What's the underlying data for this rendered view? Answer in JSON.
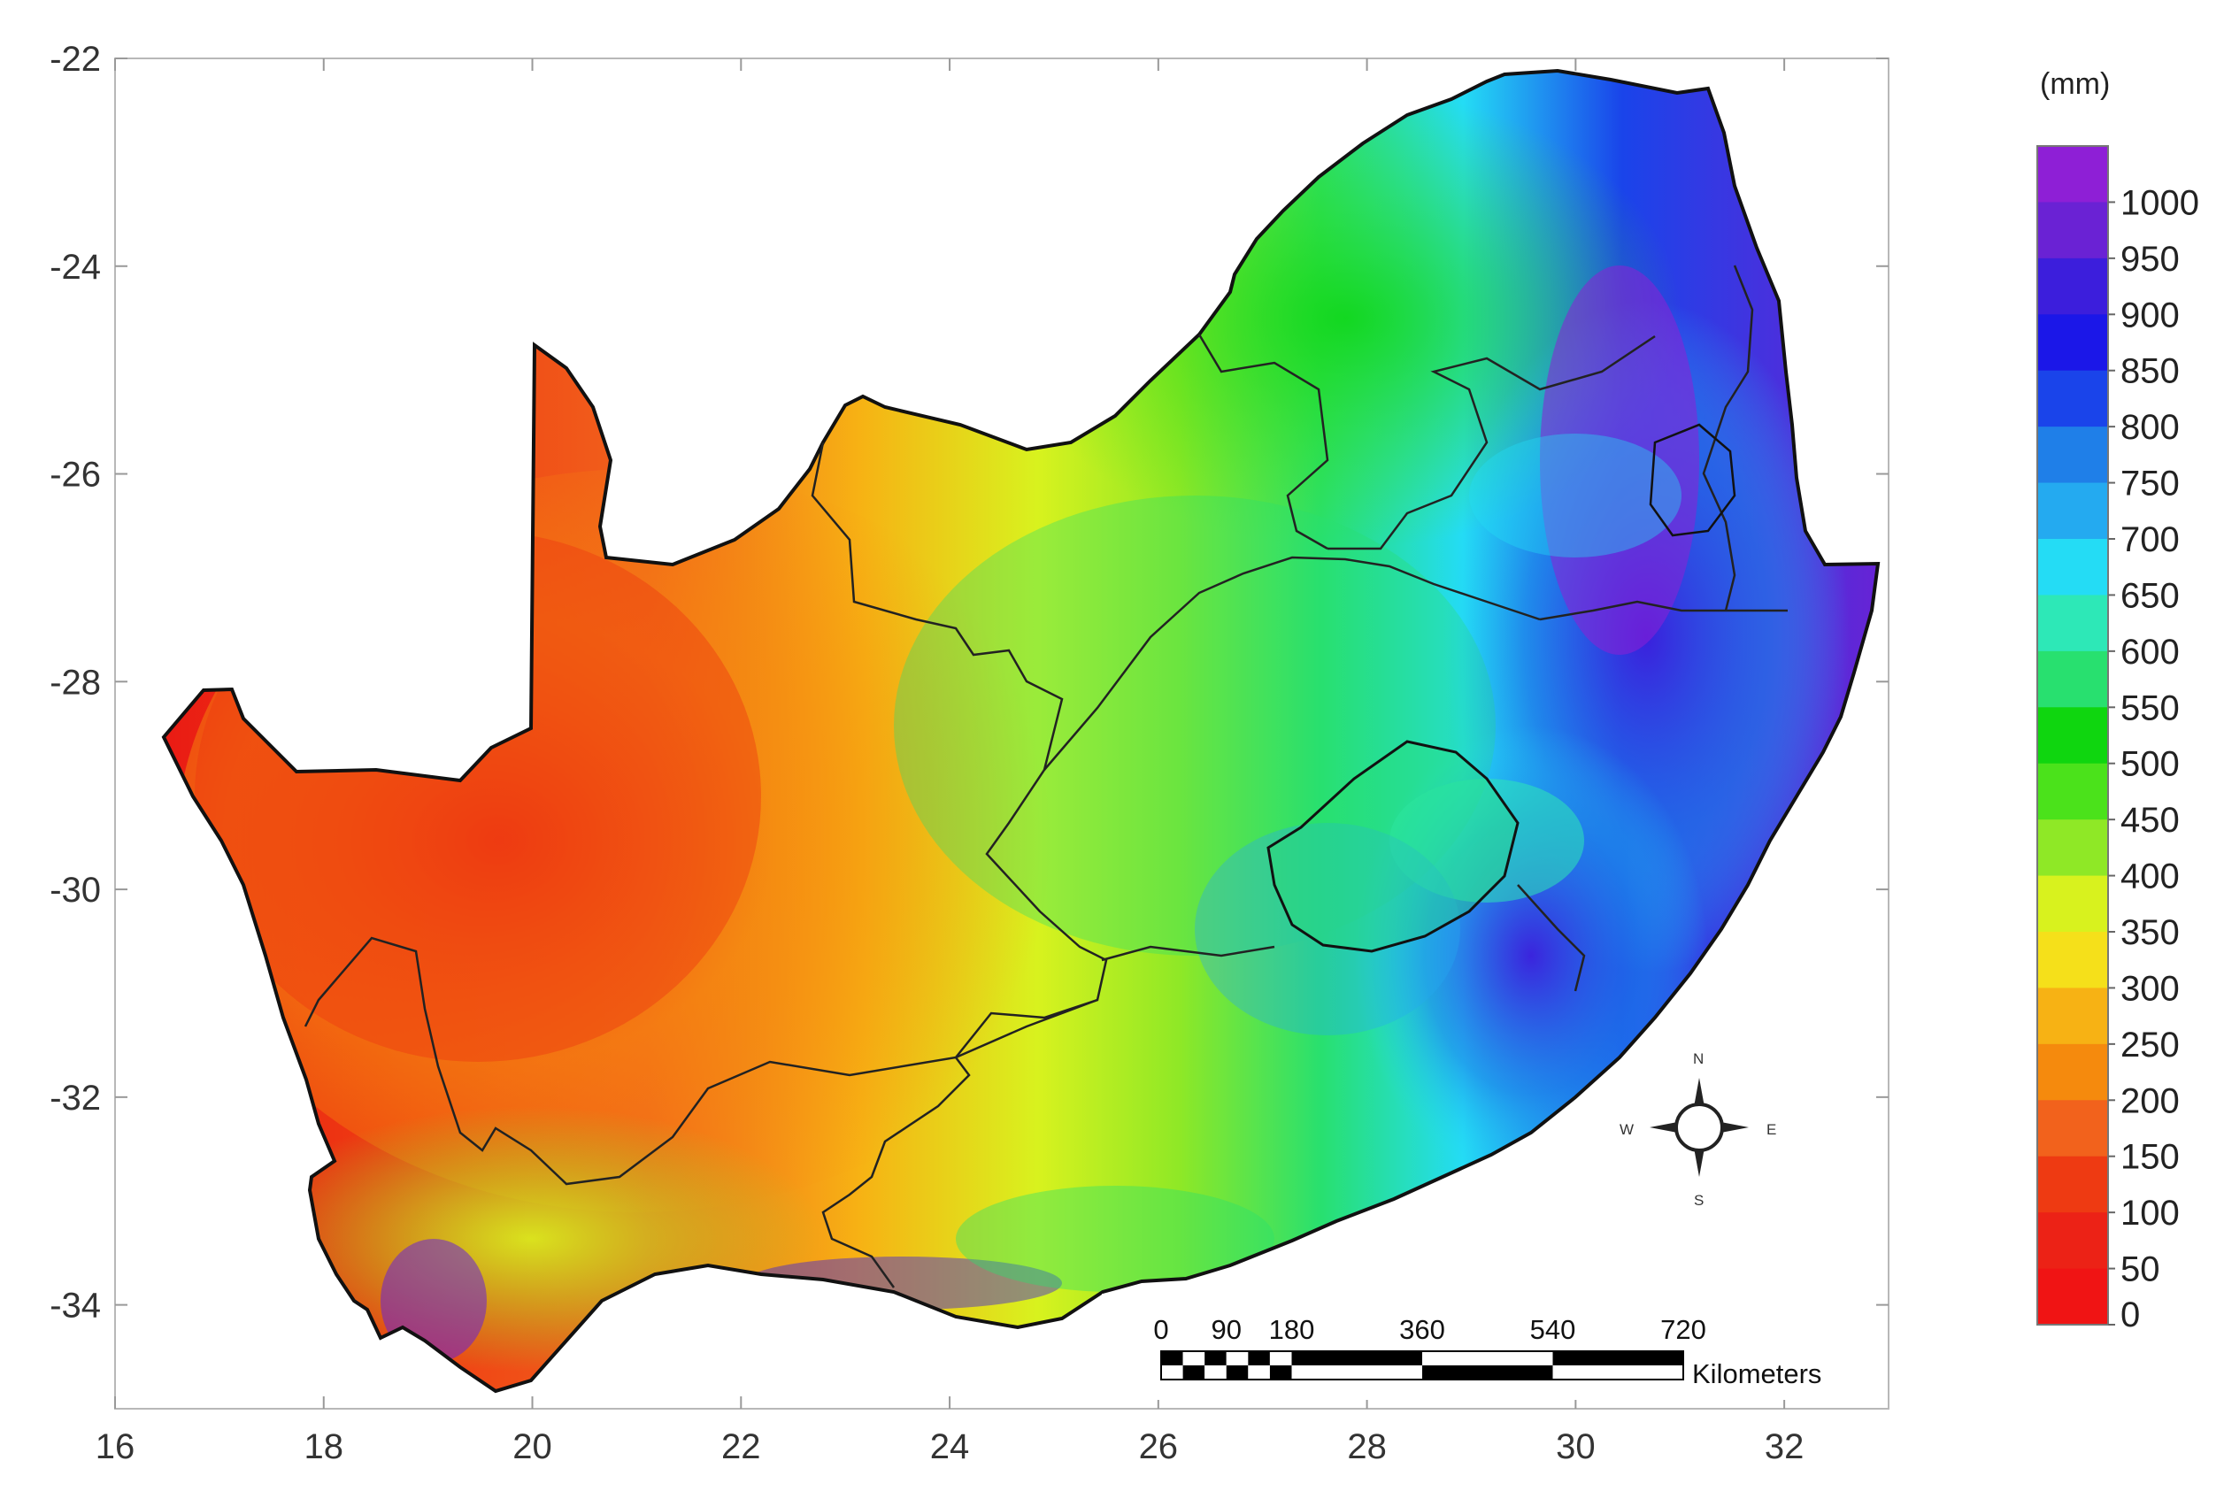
{
  "map": {
    "x_ticks": [
      "16",
      "18",
      "20",
      "22",
      "24",
      "26",
      "28",
      "30",
      "32"
    ],
    "y_ticks": [
      "-22",
      "-24",
      "-26",
      "-28",
      "-30",
      "-32",
      "-34"
    ],
    "x_range": [
      16,
      33
    ],
    "y_range": [
      -35,
      -22
    ]
  },
  "legend": {
    "unit": "(mm)",
    "labels": [
      "1000",
      "950",
      "900",
      "850",
      "800",
      "750",
      "700",
      "650",
      "600",
      "550",
      "500",
      "450",
      "400",
      "350",
      "300",
      "250",
      "200",
      "150",
      "100",
      "50",
      "0"
    ],
    "colors": [
      "#8e1fd6",
      "#6a22d4",
      "#3c1edc",
      "#1b17e8",
      "#1a44ea",
      "#1f7fe8",
      "#24aaf0",
      "#24dcf5",
      "#2de8b7",
      "#28e06f",
      "#0fd60f",
      "#4be21b",
      "#8fe826",
      "#d8f21e",
      "#f5e01a",
      "#f7b214",
      "#f58a0d",
      "#f2621c",
      "#ee3a12",
      "#ec2216",
      "#f01414"
    ]
  },
  "scale_bar": {
    "labels": [
      "0",
      "90",
      "180",
      "360",
      "540",
      "720"
    ],
    "unit": "Kilometers"
  },
  "compass": {
    "n": "N",
    "s": "S",
    "e": "E",
    "w": "W"
  }
}
